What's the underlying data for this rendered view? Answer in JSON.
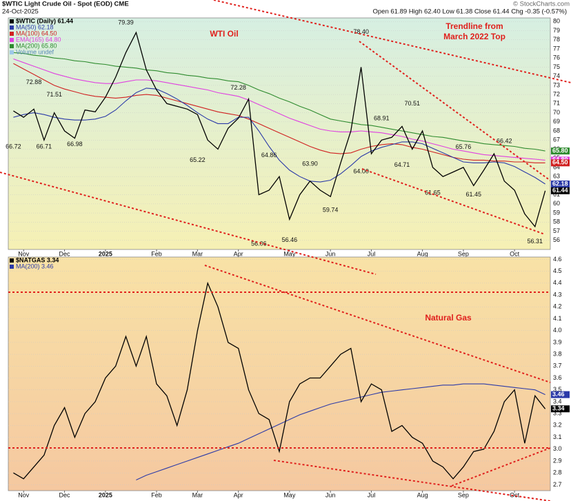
{
  "chart_data": [
    {
      "type": "line",
      "title": "$WTIC Light Crude Oil - Spot (EOD) CME",
      "date": "24-Oct-2025",
      "quote": "Open 61.89 High 62.40 Low 61.38 Close 61.44 Chg -0.35 (-0.57%)",
      "source": "© StockCharts.com",
      "annotations": [
        "WTI Oil",
        "Trendline from",
        "March 2022 Top"
      ],
      "categories": [
        null,
        "Nov",
        null,
        null,
        null,
        "Dec",
        null,
        null,
        null,
        "2025",
        null,
        null,
        null,
        null,
        "Feb",
        null,
        null,
        null,
        "Mar",
        null,
        null,
        null,
        "Apr",
        null,
        null,
        null,
        null,
        "May",
        null,
        null,
        null,
        "Jun",
        null,
        null,
        null,
        "Jul",
        null,
        null,
        null,
        null,
        "Aug",
        null,
        null,
        null,
        "Sep",
        null,
        null,
        null,
        null,
        "Oct",
        null,
        null,
        null
      ],
      "ylim": [
        55,
        80.4
      ],
      "yticks": [
        56,
        57,
        58,
        59,
        60,
        61,
        62,
        63,
        64,
        65,
        66,
        67,
        68,
        69,
        70,
        71,
        72,
        73,
        74,
        75,
        76,
        77,
        78,
        79,
        80
      ],
      "grid": true,
      "legend_extra": "Volume undef",
      "series": [
        {
          "name": "MA(200) 65.80",
          "color": "#2e8b2e",
          "last_label": "65.80",
          "values": [
            76.6,
            76.5,
            76.3,
            76.2,
            76.0,
            75.9,
            75.7,
            75.6,
            75.4,
            75.3,
            75.1,
            75.0,
            74.9,
            74.7,
            74.6,
            74.4,
            74.3,
            74.1,
            74.0,
            73.8,
            73.7,
            73.5,
            73.4,
            73.0,
            72.5,
            72.1,
            71.6,
            71.2,
            70.7,
            70.3,
            69.8,
            69.3,
            69.1,
            68.9,
            68.7,
            68.6,
            68.4,
            68.2,
            68.0,
            67.8,
            67.6,
            67.4,
            67.3,
            67.1,
            66.9,
            66.8,
            66.6,
            66.5,
            66.4,
            66.3,
            66.1,
            66.0,
            65.8
          ]
        },
        {
          "name": "EMA(165) 64.80",
          "color": "#e040e0",
          "last_label": "64.80",
          "values": [
            75.9,
            75.5,
            75.1,
            74.7,
            74.3,
            74.0,
            73.7,
            73.5,
            73.3,
            73.2,
            73.2,
            73.4,
            73.6,
            73.6,
            73.5,
            73.3,
            73.1,
            72.9,
            72.7,
            72.5,
            72.2,
            72.0,
            71.8,
            71.4,
            70.9,
            70.4,
            69.9,
            69.4,
            69.0,
            68.6,
            68.2,
            68.0,
            67.9,
            67.9,
            68.0,
            67.9,
            67.8,
            67.6,
            67.4,
            67.1,
            66.9,
            66.6,
            66.3,
            66.0,
            65.8,
            65.6,
            65.4,
            65.3,
            65.2,
            65.1,
            65.0,
            64.9,
            64.8
          ]
        },
        {
          "name": "MA(100) 64.50",
          "color": "#d02020",
          "last_label": "64.50",
          "values": [
            75.4,
            74.8,
            74.2,
            73.6,
            73.0,
            72.6,
            72.3,
            72.0,
            71.8,
            71.7,
            71.6,
            71.7,
            71.9,
            72.0,
            71.9,
            71.6,
            71.3,
            71.0,
            70.7,
            70.4,
            70.1,
            69.9,
            69.7,
            69.3,
            68.8,
            68.3,
            67.8,
            67.3,
            66.8,
            66.3,
            65.9,
            65.6,
            65.5,
            65.6,
            66.0,
            66.3,
            66.5,
            66.6,
            66.5,
            66.2,
            66.0,
            65.7,
            65.4,
            65.1,
            64.9,
            64.8,
            64.8,
            64.7,
            64.7,
            64.6,
            64.6,
            64.5,
            64.5
          ]
        },
        {
          "name": "MA(50) 62.18",
          "color": "#2b3aa8",
          "last_label": "62.18",
          "values": [
            69.5,
            69.8,
            70.0,
            69.8,
            69.5,
            69.3,
            69.2,
            69.2,
            69.3,
            69.6,
            70.3,
            71.3,
            72.2,
            72.7,
            72.6,
            72.1,
            71.5,
            70.8,
            70.0,
            69.3,
            68.8,
            68.8,
            69.5,
            69.5,
            68.0,
            66.3,
            64.8,
            63.7,
            63.0,
            62.5,
            62.4,
            62.6,
            63.3,
            64.2,
            65.2,
            65.8,
            66.2,
            66.5,
            66.8,
            66.8,
            66.6,
            66.1,
            65.6,
            65.1,
            64.6,
            64.5,
            64.5,
            64.6,
            64.5,
            64.1,
            63.5,
            62.9,
            62.18
          ]
        },
        {
          "name": "$WTIC (Daily) 61.44",
          "color": "#000000",
          "last_label": "61.44",
          "values": [
            70.2,
            69.5,
            70.4,
            67.0,
            70.0,
            68.0,
            67.2,
            70.3,
            70.1,
            71.7,
            73.9,
            76.6,
            78.8,
            74.7,
            72.5,
            71.0,
            70.7,
            70.4,
            69.8,
            67.0,
            66.0,
            68.3,
            69.4,
            71.5,
            61.0,
            61.5,
            63.0,
            58.3,
            61.0,
            62.5,
            61.5,
            60.8,
            64.5,
            68.0,
            75.0,
            65.5,
            67.0,
            67.3,
            68.5,
            66.0,
            68.0,
            64.0,
            63.0,
            63.5,
            64.0,
            62.0,
            63.7,
            65.5,
            62.5,
            61.5,
            58.9,
            57.5,
            61.44
          ]
        }
      ],
      "price_labels": {
        "x": [
          0,
          2,
          4,
          3,
          6,
          11,
          22,
          18,
          25,
          29,
          24,
          27,
          31,
          34,
          34,
          36,
          39,
          38,
          41,
          44,
          45,
          48,
          51
        ],
        "values": [
          66.72,
          72.88,
          71.51,
          66.71,
          66.98,
          79.39,
          72.28,
          65.22,
          64.86,
          63.9,
          56.06,
          56.46,
          59.74,
          78.4,
          64,
          68.91,
          70.51,
          64.71,
          61.65,
          65.76,
          61.45,
          66.42,
          56.31
        ],
        "value_labels": [
          "66.72",
          "72.88",
          "71.51",
          "66.71",
          "66.98",
          "79.39",
          "72.28",
          "65.22",
          "64.86",
          "63.90",
          "56.06",
          "56.46",
          "59.74",
          "78.40",
          "64.00",
          "68.91",
          "70.51",
          "64.71",
          "61.65",
          "65.76",
          "61.45",
          "66.42",
          "56.31"
        ]
      }
    },
    {
      "type": "line",
      "annotations": [
        "Natural Gas"
      ],
      "categories": [
        null,
        "Nov",
        null,
        null,
        null,
        "Dec",
        null,
        null,
        null,
        "2025",
        null,
        null,
        null,
        null,
        "Feb",
        null,
        null,
        null,
        "Mar",
        null,
        null,
        null,
        "Apr",
        null,
        null,
        null,
        null,
        "May",
        null,
        null,
        null,
        "Jun",
        null,
        null,
        null,
        "Jul",
        null,
        null,
        null,
        null,
        "Aug",
        null,
        null,
        null,
        "Sep",
        null,
        null,
        null,
        null,
        "Oct",
        null,
        null,
        null
      ],
      "ylim": [
        2.65,
        4.62
      ],
      "yticks": [
        2.7,
        2.8,
        2.9,
        {
          "value": 3,
          "label": "3.0"
        },
        3.1,
        3.2,
        3.3,
        3.4,
        3.5,
        3.6,
        3.7,
        3.8,
        3.9,
        {
          "value": 4,
          "label": "4.0"
        },
        4.1,
        4.2,
        4.3,
        4.4,
        4.5,
        4.6
      ],
      "grid": true,
      "series": [
        {
          "name": "MA(200) 3.46",
          "color": "#2b3aa8",
          "last_label": "3.46",
          "values": [
            null,
            null,
            null,
            null,
            null,
            null,
            null,
            null,
            null,
            null,
            null,
            null,
            2.74,
            2.78,
            2.81,
            2.84,
            2.87,
            2.9,
            2.93,
            2.96,
            2.99,
            3.02,
            3.05,
            3.09,
            3.13,
            3.17,
            3.21,
            3.25,
            3.29,
            3.32,
            3.35,
            3.38,
            3.4,
            3.42,
            3.44,
            3.46,
            3.48,
            3.49,
            3.5,
            3.51,
            3.52,
            3.53,
            3.54,
            3.54,
            3.55,
            3.55,
            3.55,
            3.54,
            3.53,
            3.52,
            3.51,
            3.5,
            3.46
          ]
        },
        {
          "name": "$NATGAS 3.34",
          "color": "#000000",
          "last_label": "3.34",
          "values": [
            2.8,
            2.75,
            2.85,
            2.95,
            3.2,
            3.35,
            3.1,
            3.3,
            3.4,
            3.6,
            3.7,
            3.95,
            3.7,
            3.95,
            3.55,
            3.45,
            3.2,
            3.5,
            4.0,
            4.4,
            4.2,
            3.9,
            3.85,
            3.5,
            3.3,
            3.25,
            2.98,
            3.4,
            3.55,
            3.6,
            3.6,
            3.7,
            3.8,
            3.85,
            3.4,
            3.55,
            3.5,
            3.15,
            3.2,
            3.1,
            3.05,
            2.9,
            2.85,
            2.75,
            2.85,
            2.98,
            3.0,
            3.15,
            3.4,
            3.5,
            3.05,
            3.45,
            3.34
          ]
        }
      ]
    }
  ]
}
